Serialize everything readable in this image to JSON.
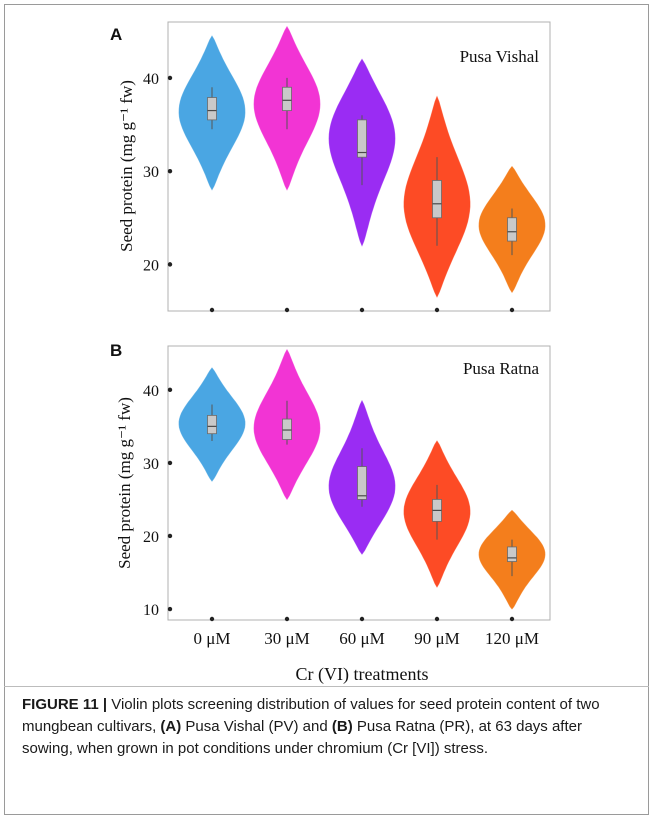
{
  "chart_data": [
    {
      "type": "violin",
      "panel": "A",
      "annotation": "Pusa Vishal",
      "ylabel": "Seed protein (mg g⁻¹ fw)",
      "ylim": [
        15,
        46
      ],
      "yticks": [
        20,
        30,
        40
      ],
      "categories": [
        "0 μM",
        "30 μM",
        "60 μM",
        "90 μM",
        "120 μM"
      ],
      "colors": [
        "#4aa6e3",
        "#f234d4",
        "#9a2cf3",
        "#fd4b25",
        "#f47e1c"
      ],
      "series": [
        {
          "min": 28.0,
          "max": 44.5,
          "q1": 35.5,
          "median": 36.5,
          "q3": 37.9,
          "whisker_low": 34.5,
          "whisker_high": 39.0,
          "peak": 36.5
        },
        {
          "min": 28.0,
          "max": 45.5,
          "q1": 36.5,
          "median": 37.6,
          "q3": 39.0,
          "whisker_low": 34.5,
          "whisker_high": 40.0,
          "peak": 37.5
        },
        {
          "min": 22.0,
          "max": 42.0,
          "q1": 31.5,
          "median": 32.0,
          "q3": 35.5,
          "whisker_low": 28.5,
          "whisker_high": 36.0,
          "peak": 34.5
        },
        {
          "min": 16.5,
          "max": 38.0,
          "q1": 25.0,
          "median": 26.5,
          "q3": 29.0,
          "whisker_low": 22.0,
          "whisker_high": 31.5,
          "peak": 26.0
        },
        {
          "min": 17.0,
          "max": 30.5,
          "q1": 22.5,
          "median": 23.5,
          "q3": 25.0,
          "whisker_low": 21.0,
          "whisker_high": 26.0,
          "peak": 24.5
        }
      ]
    },
    {
      "type": "violin",
      "panel": "B",
      "annotation": "Pusa Ratna",
      "ylabel": "Seed protein (mg g⁻¹ fw)",
      "xlabel": "Cr (VI) treatments",
      "ylim": [
        8.5,
        46
      ],
      "yticks": [
        10,
        20,
        30,
        40
      ],
      "categories": [
        "0 μM",
        "30 μM",
        "60 μM",
        "90 μM",
        "120 μM"
      ],
      "colors": [
        "#4aa6e3",
        "#f234d4",
        "#9a2cf3",
        "#fd4b25",
        "#f47e1c"
      ],
      "series": [
        {
          "min": 27.5,
          "max": 43.0,
          "q1": 34.0,
          "median": 35.0,
          "q3": 36.5,
          "whisker_low": 33.0,
          "whisker_high": 38.0,
          "peak": 35.5
        },
        {
          "min": 25.0,
          "max": 45.5,
          "q1": 33.2,
          "median": 34.5,
          "q3": 36.0,
          "whisker_low": 32.5,
          "whisker_high": 38.5,
          "peak": 34.5
        },
        {
          "min": 17.5,
          "max": 38.5,
          "q1": 25.0,
          "median": 25.5,
          "q3": 29.5,
          "whisker_low": 24.0,
          "whisker_high": 32.0,
          "peak": 26.0
        },
        {
          "min": 13.0,
          "max": 33.0,
          "q1": 22.0,
          "median": 23.5,
          "q3": 25.0,
          "whisker_low": 19.5,
          "whisker_high": 27.0,
          "peak": 23.5
        },
        {
          "min": 10.0,
          "max": 23.5,
          "q1": 16.5,
          "median": 17.0,
          "q3": 18.5,
          "whisker_low": 14.5,
          "whisker_high": 19.5,
          "peak": 18.0
        }
      ]
    }
  ],
  "caption": {
    "lead": "FIGURE 11 |",
    "t1": " Violin plots screening distribution of values for seed protein content of two mungbean cultivars, ",
    "pa": "(A)",
    "t2": " Pusa Vishal (PV) and ",
    "pb": "(B)",
    "t3": " Pusa Ratna (PR), at 63 days after sowing, when grown in pot conditions under chromium (Cr [VI]) stress."
  }
}
